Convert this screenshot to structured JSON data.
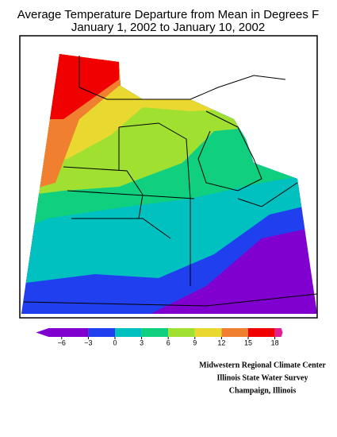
{
  "title": "Average Temperature Departure from Mean in Degrees F",
  "subtitle": "January 1, 2002 to January 10, 2002",
  "colorbar": {
    "ticks": [
      {
        "value": -6,
        "label": "−6"
      },
      {
        "value": -3,
        "label": "−3"
      },
      0,
      3,
      6,
      9,
      12,
      15,
      18
    ],
    "colors": [
      "#8000d0",
      "#2040f0",
      "#00c0c0",
      "#10d080",
      "#a0e030",
      "#e8d830",
      "#f08030",
      "#f00000",
      "#e02090"
    ]
  },
  "credits": [
    "Midwestern Regional Climate Center",
    "Illinois State Water Survey",
    "Champaign, Illinois"
  ]
}
